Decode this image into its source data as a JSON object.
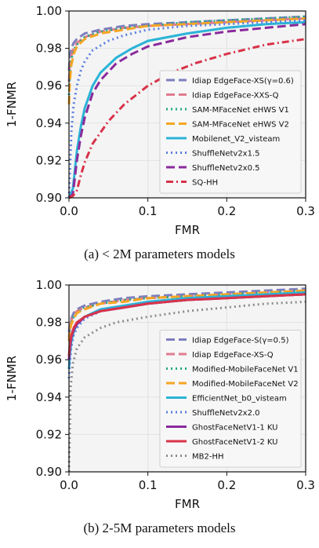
{
  "charts": [
    {
      "caption": "(a) < 2M parameters models",
      "chart_data": {
        "type": "line",
        "title": "",
        "xlabel": "FMR",
        "ylabel": "1-FNMR",
        "xlim": [
          0.0,
          0.3
        ],
        "ylim": [
          0.9,
          1.0
        ],
        "xticks": [
          "0.0",
          "0.1",
          "0.2",
          "0.3"
        ],
        "yticks": [
          "0.90",
          "0.92",
          "0.94",
          "0.96",
          "0.98",
          "1.00"
        ],
        "grid": true,
        "legend": "lower-right",
        "series": [
          {
            "name": "Idiap EdgeFace-XS(γ=0.6)",
            "color": "#7c7fbf",
            "dash": "long",
            "x": [
              0.0,
              0.001,
              0.003,
              0.006,
              0.01,
              0.02,
              0.04,
              0.07,
              0.1,
              0.15,
              0.2,
              0.25,
              0.3
            ],
            "y": [
              0.968,
              0.975,
              0.98,
              0.983,
              0.985,
              0.988,
              0.99,
              0.992,
              0.993,
              0.994,
              0.995,
              0.996,
              0.997
            ]
          },
          {
            "name": "Idiap EdgeFace-XXS-Q",
            "color": "#e07b8f",
            "dash": "long",
            "x": [
              0.0,
              0.001,
              0.003,
              0.006,
              0.01,
              0.02,
              0.04,
              0.07,
              0.1,
              0.15,
              0.2,
              0.25,
              0.3
            ],
            "y": [
              0.962,
              0.97,
              0.976,
              0.98,
              0.983,
              0.986,
              0.989,
              0.991,
              0.992,
              0.993,
              0.994,
              0.995,
              0.996
            ]
          },
          {
            "name": "SAM-MFaceNet eHWS V1",
            "color": "#22a884",
            "dash": "dot",
            "x": [
              0.0,
              0.001,
              0.003,
              0.006,
              0.01,
              0.02,
              0.04,
              0.07,
              0.1,
              0.15,
              0.2,
              0.25,
              0.3
            ],
            "y": [
              0.955,
              0.966,
              0.974,
              0.979,
              0.982,
              0.986,
              0.989,
              0.991,
              0.992,
              0.994,
              0.995,
              0.996,
              0.997
            ]
          },
          {
            "name": "SAM-MFaceNet eHWS V2",
            "color": "#f5a623",
            "dash": "long",
            "x": [
              0.0,
              0.001,
              0.003,
              0.006,
              0.01,
              0.02,
              0.04,
              0.07,
              0.1,
              0.15,
              0.2,
              0.25,
              0.3
            ],
            "y": [
              0.95,
              0.962,
              0.971,
              0.977,
              0.981,
              0.985,
              0.988,
              0.99,
              0.992,
              0.993,
              0.994,
              0.995,
              0.996
            ]
          },
          {
            "name": "Mobilenet_V2_visteam",
            "color": "#2bb3d6",
            "dash": "solid",
            "x": [
              0.0,
              0.005,
              0.01,
              0.015,
              0.02,
              0.03,
              0.04,
              0.06,
              0.08,
              0.1,
              0.15,
              0.2,
              0.25,
              0.3
            ],
            "y": [
              0.9,
              0.905,
              0.925,
              0.938,
              0.948,
              0.96,
              0.967,
              0.975,
              0.98,
              0.984,
              0.988,
              0.991,
              0.993,
              0.994
            ]
          },
          {
            "name": "ShuffleNetv2x1.5",
            "color": "#5b7fe0",
            "dash": "dot",
            "x": [
              0.0,
              0.003,
              0.006,
              0.01,
              0.015,
              0.02,
              0.03,
              0.05,
              0.07,
              0.1,
              0.15,
              0.2,
              0.25,
              0.3
            ],
            "y": [
              0.9,
              0.935,
              0.95,
              0.96,
              0.968,
              0.973,
              0.979,
              0.984,
              0.987,
              0.99,
              0.992,
              0.993,
              0.994,
              0.995
            ]
          },
          {
            "name": "ShuffleNetv2x0.5",
            "color": "#8a2a9c",
            "dash": "long",
            "x": [
              0.0,
              0.005,
              0.01,
              0.015,
              0.02,
              0.03,
              0.04,
              0.06,
              0.08,
              0.1,
              0.15,
              0.2,
              0.25,
              0.3
            ],
            "y": [
              0.9,
              0.902,
              0.92,
              0.933,
              0.943,
              0.956,
              0.963,
              0.972,
              0.977,
              0.981,
              0.986,
              0.989,
              0.991,
              0.993
            ]
          },
          {
            "name": "SQ-HH",
            "color": "#d8334a",
            "dash": "dashdot",
            "x": [
              0.0,
              0.005,
              0.01,
              0.015,
              0.02,
              0.03,
              0.05,
              0.07,
              0.1,
              0.13,
              0.16,
              0.2,
              0.25,
              0.3
            ],
            "y": [
              0.9,
              0.901,
              0.904,
              0.912,
              0.919,
              0.929,
              0.941,
              0.95,
              0.96,
              0.967,
              0.972,
              0.977,
              0.982,
              0.985
            ]
          }
        ]
      }
    },
    {
      "caption": "(b) 2-5M parameters models",
      "chart_data": {
        "type": "line",
        "title": "",
        "xlabel": "FMR",
        "ylabel": "1-FNMR",
        "xlim": [
          0.0,
          0.3
        ],
        "ylim": [
          0.9,
          1.0
        ],
        "xticks": [
          "0.0",
          "0.1",
          "0.2",
          "0.3"
        ],
        "yticks": [
          "0.90",
          "0.92",
          "0.94",
          "0.96",
          "0.98",
          "1.00"
        ],
        "grid": true,
        "legend": "lower-right",
        "series": [
          {
            "name": "Idiap EdgeFace-S(γ=0.5)",
            "color": "#7c7fbf",
            "dash": "long",
            "x": [
              0.0,
              0.001,
              0.003,
              0.006,
              0.01,
              0.02,
              0.04,
              0.07,
              0.1,
              0.15,
              0.2,
              0.25,
              0.3
            ],
            "y": [
              0.975,
              0.979,
              0.982,
              0.985,
              0.987,
              0.989,
              0.991,
              0.993,
              0.994,
              0.995,
              0.996,
              0.997,
              0.998
            ]
          },
          {
            "name": "Idiap EdgeFace-XS-Q",
            "color": "#e07b8f",
            "dash": "long",
            "x": [
              0.0,
              0.001,
              0.003,
              0.006,
              0.01,
              0.02,
              0.04,
              0.07,
              0.1,
              0.15,
              0.2,
              0.25,
              0.3
            ],
            "y": [
              0.972,
              0.977,
              0.981,
              0.984,
              0.986,
              0.988,
              0.99,
              0.992,
              0.993,
              0.994,
              0.995,
              0.996,
              0.997
            ]
          },
          {
            "name": "Modified-MobileFaceNet V1",
            "color": "#22a884",
            "dash": "dot",
            "x": [
              0.0,
              0.001,
              0.003,
              0.006,
              0.01,
              0.02,
              0.04,
              0.07,
              0.1,
              0.15,
              0.2,
              0.25,
              0.3
            ],
            "y": [
              0.97,
              0.976,
              0.98,
              0.983,
              0.985,
              0.988,
              0.99,
              0.992,
              0.993,
              0.994,
              0.995,
              0.996,
              0.997
            ]
          },
          {
            "name": "Modified-MobileFaceNet V2",
            "color": "#f5a623",
            "dash": "long",
            "x": [
              0.0,
              0.001,
              0.003,
              0.006,
              0.01,
              0.02,
              0.04,
              0.07,
              0.1,
              0.15,
              0.2,
              0.25,
              0.3
            ],
            "y": [
              0.97,
              0.975,
              0.979,
              0.982,
              0.985,
              0.987,
              0.99,
              0.991,
              0.993,
              0.994,
              0.995,
              0.996,
              0.997
            ]
          },
          {
            "name": "EfficientNet_b0_visteam",
            "color": "#2bb3d6",
            "dash": "solid",
            "x": [
              0.0,
              0.001,
              0.003,
              0.006,
              0.01,
              0.02,
              0.04,
              0.07,
              0.1,
              0.15,
              0.2,
              0.25,
              0.3
            ],
            "y": [
              0.955,
              0.962,
              0.97,
              0.975,
              0.979,
              0.983,
              0.987,
              0.989,
              0.991,
              0.993,
              0.994,
              0.995,
              0.996
            ]
          },
          {
            "name": "ShuffleNetv2x2.0",
            "color": "#5b7fe0",
            "dash": "dot",
            "x": [
              0.0,
              0.001,
              0.003,
              0.006,
              0.01,
              0.02,
              0.04,
              0.07,
              0.1,
              0.15,
              0.2,
              0.25,
              0.3
            ],
            "y": [
              0.95,
              0.958,
              0.967,
              0.973,
              0.977,
              0.982,
              0.986,
              0.988,
              0.99,
              0.992,
              0.993,
              0.994,
              0.995
            ]
          },
          {
            "name": "GhostFaceNetV1-1 KU",
            "color": "#8a2a9c",
            "dash": "solid",
            "x": [
              0.0,
              0.001,
              0.003,
              0.006,
              0.01,
              0.02,
              0.04,
              0.07,
              0.1,
              0.15,
              0.2,
              0.25,
              0.3
            ],
            "y": [
              0.96,
              0.966,
              0.972,
              0.976,
              0.979,
              0.983,
              0.986,
              0.988,
              0.99,
              0.992,
              0.993,
              0.994,
              0.995
            ]
          },
          {
            "name": "GhostFaceNetV1-2 KU",
            "color": "#d8334a",
            "dash": "solid",
            "x": [
              0.0,
              0.001,
              0.003,
              0.006,
              0.01,
              0.02,
              0.04,
              0.07,
              0.1,
              0.15,
              0.2,
              0.25,
              0.3
            ],
            "y": [
              0.962,
              0.968,
              0.973,
              0.977,
              0.98,
              0.983,
              0.986,
              0.988,
              0.99,
              0.992,
              0.993,
              0.994,
              0.995
            ]
          },
          {
            "name": "MB2-HH",
            "color": "#8c8c8c",
            "dash": "dot",
            "x": [
              0.0,
              0.002,
              0.005,
              0.01,
              0.02,
              0.04,
              0.06,
              0.1,
              0.15,
              0.2,
              0.25,
              0.3
            ],
            "y": [
              0.9,
              0.945,
              0.958,
              0.966,
              0.972,
              0.977,
              0.98,
              0.983,
              0.986,
              0.988,
              0.99,
              0.991
            ]
          }
        ]
      }
    }
  ]
}
